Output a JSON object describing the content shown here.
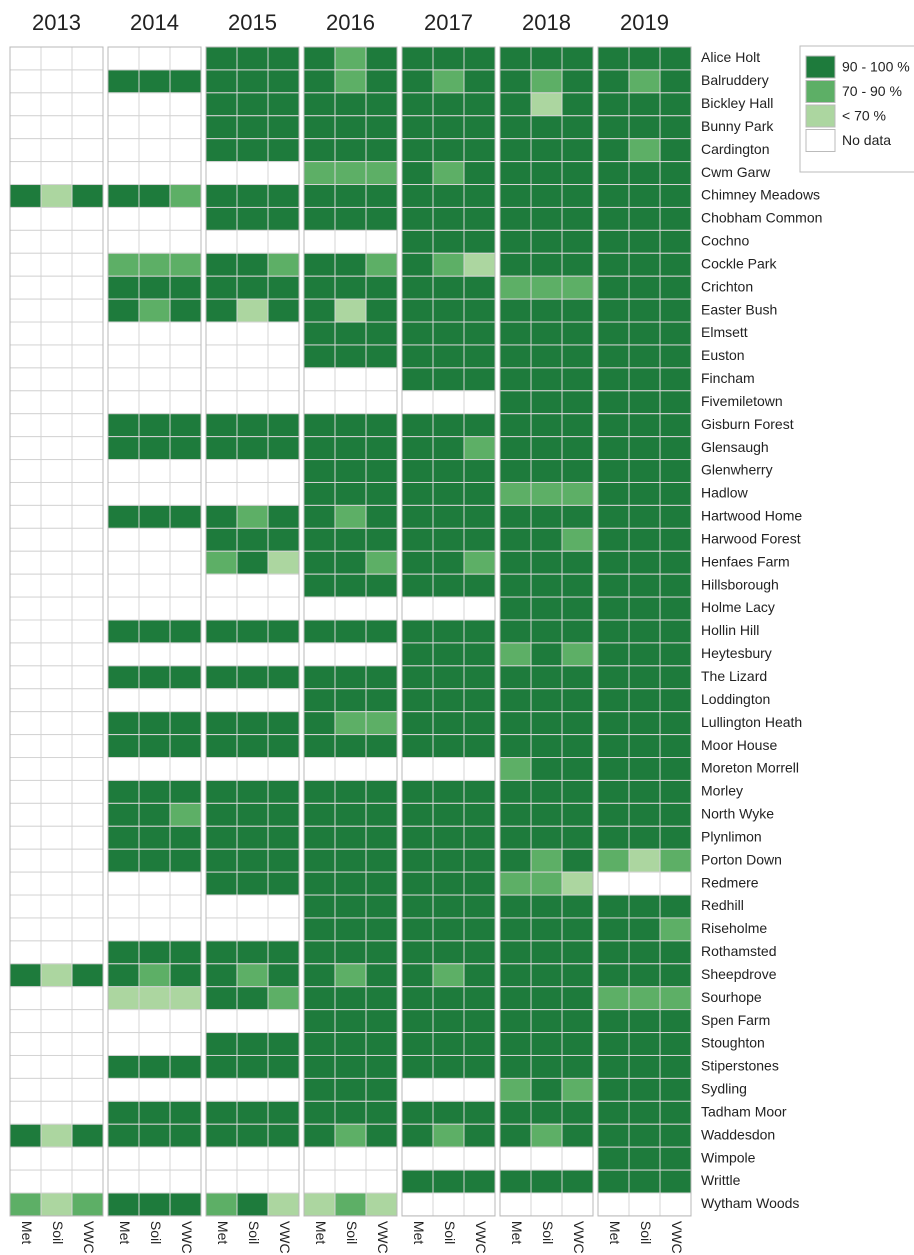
{
  "chart_data": {
    "type": "heatmap",
    "columns": [
      "2013",
      "2014",
      "2015",
      "2016",
      "2017",
      "2018",
      "2019"
    ],
    "variables": [
      "Met",
      "Soil",
      "VWC"
    ],
    "rows": [
      "Alice Holt",
      "Balruddery",
      "Bickley Hall",
      "Bunny Park",
      "Cardington",
      "Cwm Garw",
      "Chimney Meadows",
      "Chobham Common",
      "Cochno",
      "Cockle Park",
      "Crichton",
      "Easter Bush",
      "Elmsett",
      "Euston",
      "Fincham",
      "Fivemiletown",
      "Gisburn Forest",
      "Glensaugh",
      "Glenwherry",
      "Hadlow",
      "Hartwood Home",
      "Harwood Forest",
      "Henfaes Farm",
      "Hillsborough",
      "Holme Lacy",
      "Hollin Hill",
      "Heytesbury",
      "The Lizard",
      "Loddington",
      "Lullington Heath",
      "Moor House",
      "Moreton Morrell",
      "Morley",
      "North Wyke",
      "Plynlimon",
      "Porton Down",
      "Redmere",
      "Redhill",
      "Riseholme",
      "Rothamsted",
      "Sheepdrove",
      "Sourhope",
      "Spen Farm",
      "Stoughton",
      "Stiperstones",
      "Sydling",
      "Tadham Moor",
      "Waddesdon",
      "Wimpole",
      "Writtle",
      "Wytham Woods"
    ],
    "legend": [
      {
        "value": 3,
        "label": "90 - 100 %",
        "color": "#1e7b3c"
      },
      {
        "value": 2,
        "label": "70 - 90 %",
        "color": "#5daf66"
      },
      {
        "value": 1,
        "label": "< 70 %",
        "color": "#acd6a0"
      },
      {
        "value": 0,
        "label": "No data",
        "color": "#ffffff"
      }
    ],
    "values": [
      [
        0,
        0,
        0,
        0,
        0,
        0,
        3,
        3,
        3,
        3,
        2,
        3,
        3,
        3,
        3,
        3,
        3,
        3,
        3,
        3,
        3
      ],
      [
        0,
        0,
        0,
        3,
        3,
        3,
        3,
        3,
        3,
        3,
        2,
        3,
        3,
        2,
        3,
        3,
        2,
        3,
        3,
        2,
        3
      ],
      [
        0,
        0,
        0,
        0,
        0,
        0,
        3,
        3,
        3,
        3,
        3,
        3,
        3,
        3,
        3,
        3,
        1,
        3,
        3,
        3,
        3
      ],
      [
        0,
        0,
        0,
        0,
        0,
        0,
        3,
        3,
        3,
        3,
        3,
        3,
        3,
        3,
        3,
        3,
        3,
        3,
        3,
        3,
        3
      ],
      [
        0,
        0,
        0,
        0,
        0,
        0,
        3,
        3,
        3,
        3,
        3,
        3,
        3,
        3,
        3,
        3,
        3,
        3,
        3,
        2,
        3
      ],
      [
        0,
        0,
        0,
        0,
        0,
        0,
        0,
        0,
        0,
        2,
        2,
        2,
        3,
        2,
        3,
        3,
        3,
        3,
        3,
        3,
        3
      ],
      [
        3,
        1,
        3,
        3,
        3,
        2,
        3,
        3,
        3,
        3,
        3,
        3,
        3,
        3,
        3,
        3,
        3,
        3,
        3,
        3,
        3
      ],
      [
        0,
        0,
        0,
        0,
        0,
        0,
        3,
        3,
        3,
        3,
        3,
        3,
        3,
        3,
        3,
        3,
        3,
        3,
        3,
        3,
        3
      ],
      [
        0,
        0,
        0,
        0,
        0,
        0,
        0,
        0,
        0,
        0,
        0,
        0,
        3,
        3,
        3,
        3,
        3,
        3,
        3,
        3,
        3
      ],
      [
        0,
        0,
        0,
        2,
        2,
        2,
        3,
        3,
        2,
        3,
        3,
        2,
        3,
        2,
        1,
        3,
        3,
        3,
        3,
        3,
        3
      ],
      [
        0,
        0,
        0,
        3,
        3,
        3,
        3,
        3,
        3,
        3,
        3,
        3,
        3,
        3,
        3,
        2,
        2,
        2,
        3,
        3,
        3
      ],
      [
        0,
        0,
        0,
        3,
        2,
        3,
        3,
        1,
        3,
        3,
        1,
        3,
        3,
        3,
        3,
        3,
        3,
        3,
        3,
        3,
        3
      ],
      [
        0,
        0,
        0,
        0,
        0,
        0,
        0,
        0,
        0,
        3,
        3,
        3,
        3,
        3,
        3,
        3,
        3,
        3,
        3,
        3,
        3
      ],
      [
        0,
        0,
        0,
        0,
        0,
        0,
        0,
        0,
        0,
        3,
        3,
        3,
        3,
        3,
        3,
        3,
        3,
        3,
        3,
        3,
        3
      ],
      [
        0,
        0,
        0,
        0,
        0,
        0,
        0,
        0,
        0,
        0,
        0,
        0,
        3,
        3,
        3,
        3,
        3,
        3,
        3,
        3,
        3
      ],
      [
        0,
        0,
        0,
        0,
        0,
        0,
        0,
        0,
        0,
        0,
        0,
        0,
        0,
        0,
        0,
        3,
        3,
        3,
        3,
        3,
        3
      ],
      [
        0,
        0,
        0,
        3,
        3,
        3,
        3,
        3,
        3,
        3,
        3,
        3,
        3,
        3,
        3,
        3,
        3,
        3,
        3,
        3,
        3
      ],
      [
        0,
        0,
        0,
        3,
        3,
        3,
        3,
        3,
        3,
        3,
        3,
        3,
        3,
        3,
        2,
        3,
        3,
        3,
        3,
        3,
        3
      ],
      [
        0,
        0,
        0,
        0,
        0,
        0,
        0,
        0,
        0,
        3,
        3,
        3,
        3,
        3,
        3,
        3,
        3,
        3,
        3,
        3,
        3
      ],
      [
        0,
        0,
        0,
        0,
        0,
        0,
        0,
        0,
        0,
        3,
        3,
        3,
        3,
        3,
        3,
        2,
        2,
        2,
        3,
        3,
        3
      ],
      [
        0,
        0,
        0,
        3,
        3,
        3,
        3,
        2,
        3,
        3,
        2,
        3,
        3,
        3,
        3,
        3,
        3,
        3,
        3,
        3,
        3
      ],
      [
        0,
        0,
        0,
        0,
        0,
        0,
        3,
        3,
        3,
        3,
        3,
        3,
        3,
        3,
        3,
        3,
        3,
        2,
        3,
        3,
        3
      ],
      [
        0,
        0,
        0,
        0,
        0,
        0,
        2,
        3,
        1,
        3,
        3,
        2,
        3,
        3,
        2,
        3,
        3,
        3,
        3,
        3,
        3
      ],
      [
        0,
        0,
        0,
        0,
        0,
        0,
        0,
        0,
        0,
        3,
        3,
        3,
        3,
        3,
        3,
        3,
        3,
        3,
        3,
        3,
        3
      ],
      [
        0,
        0,
        0,
        0,
        0,
        0,
        0,
        0,
        0,
        0,
        0,
        0,
        0,
        0,
        0,
        3,
        3,
        3,
        3,
        3,
        3
      ],
      [
        0,
        0,
        0,
        3,
        3,
        3,
        3,
        3,
        3,
        3,
        3,
        3,
        3,
        3,
        3,
        3,
        3,
        3,
        3,
        3,
        3
      ],
      [
        0,
        0,
        0,
        0,
        0,
        0,
        0,
        0,
        0,
        0,
        0,
        0,
        3,
        3,
        3,
        2,
        3,
        2,
        3,
        3,
        3
      ],
      [
        0,
        0,
        0,
        3,
        3,
        3,
        3,
        3,
        3,
        3,
        3,
        3,
        3,
        3,
        3,
        3,
        3,
        3,
        3,
        3,
        3
      ],
      [
        0,
        0,
        0,
        0,
        0,
        0,
        0,
        0,
        0,
        3,
        3,
        3,
        3,
        3,
        3,
        3,
        3,
        3,
        3,
        3,
        3
      ],
      [
        0,
        0,
        0,
        3,
        3,
        3,
        3,
        3,
        3,
        3,
        2,
        2,
        3,
        3,
        3,
        3,
        3,
        3,
        3,
        3,
        3
      ],
      [
        0,
        0,
        0,
        3,
        3,
        3,
        3,
        3,
        3,
        3,
        3,
        3,
        3,
        3,
        3,
        3,
        3,
        3,
        3,
        3,
        3
      ],
      [
        0,
        0,
        0,
        0,
        0,
        0,
        0,
        0,
        0,
        0,
        0,
        0,
        0,
        0,
        0,
        2,
        3,
        3,
        3,
        3,
        3
      ],
      [
        0,
        0,
        0,
        3,
        3,
        3,
        3,
        3,
        3,
        3,
        3,
        3,
        3,
        3,
        3,
        3,
        3,
        3,
        3,
        3,
        3
      ],
      [
        0,
        0,
        0,
        3,
        3,
        2,
        3,
        3,
        3,
        3,
        3,
        3,
        3,
        3,
        3,
        3,
        3,
        3,
        3,
        3,
        3
      ],
      [
        0,
        0,
        0,
        3,
        3,
        3,
        3,
        3,
        3,
        3,
        3,
        3,
        3,
        3,
        3,
        3,
        3,
        3,
        3,
        3,
        3
      ],
      [
        0,
        0,
        0,
        3,
        3,
        3,
        3,
        3,
        3,
        3,
        3,
        3,
        3,
        3,
        3,
        3,
        2,
        3,
        2,
        1,
        2
      ],
      [
        0,
        0,
        0,
        0,
        0,
        0,
        3,
        3,
        3,
        3,
        3,
        3,
        3,
        3,
        3,
        2,
        2,
        1,
        0,
        0,
        0
      ],
      [
        0,
        0,
        0,
        0,
        0,
        0,
        0,
        0,
        0,
        3,
        3,
        3,
        3,
        3,
        3,
        3,
        3,
        3,
        3,
        3,
        3
      ],
      [
        0,
        0,
        0,
        0,
        0,
        0,
        0,
        0,
        0,
        3,
        3,
        3,
        3,
        3,
        3,
        3,
        3,
        3,
        3,
        3,
        2
      ],
      [
        0,
        0,
        0,
        3,
        3,
        3,
        3,
        3,
        3,
        3,
        3,
        3,
        3,
        3,
        3,
        3,
        3,
        3,
        3,
        3,
        3
      ],
      [
        3,
        1,
        3,
        3,
        2,
        3,
        3,
        2,
        3,
        3,
        2,
        3,
        3,
        2,
        3,
        3,
        3,
        3,
        3,
        3,
        3
      ],
      [
        0,
        0,
        0,
        1,
        1,
        1,
        3,
        3,
        2,
        3,
        3,
        3,
        3,
        3,
        3,
        3,
        3,
        3,
        2,
        2,
        2
      ],
      [
        0,
        0,
        0,
        0,
        0,
        0,
        0,
        0,
        0,
        3,
        3,
        3,
        3,
        3,
        3,
        3,
        3,
        3,
        3,
        3,
        3
      ],
      [
        0,
        0,
        0,
        0,
        0,
        0,
        3,
        3,
        3,
        3,
        3,
        3,
        3,
        3,
        3,
        3,
        3,
        3,
        3,
        3,
        3
      ],
      [
        0,
        0,
        0,
        3,
        3,
        3,
        3,
        3,
        3,
        3,
        3,
        3,
        3,
        3,
        3,
        3,
        3,
        3,
        3,
        3,
        3
      ],
      [
        0,
        0,
        0,
        0,
        0,
        0,
        0,
        0,
        0,
        3,
        3,
        3,
        0,
        0,
        0,
        2,
        3,
        2,
        3,
        3,
        3
      ],
      [
        0,
        0,
        0,
        3,
        3,
        3,
        3,
        3,
        3,
        3,
        3,
        3,
        3,
        3,
        3,
        3,
        3,
        3,
        3,
        3,
        3
      ],
      [
        3,
        1,
        3,
        3,
        3,
        3,
        3,
        3,
        3,
        3,
        2,
        3,
        3,
        2,
        3,
        3,
        2,
        3,
        3,
        3,
        3
      ],
      [
        0,
        0,
        0,
        0,
        0,
        0,
        0,
        0,
        0,
        0,
        0,
        0,
        0,
        0,
        0,
        0,
        0,
        0,
        3,
        3,
        3
      ],
      [
        0,
        0,
        0,
        0,
        0,
        0,
        0,
        0,
        0,
        0,
        0,
        0,
        3,
        3,
        3,
        3,
        3,
        3,
        3,
        3,
        3
      ],
      [
        2,
        1,
        2,
        3,
        3,
        3,
        2,
        3,
        1,
        1,
        2,
        1,
        0,
        0,
        0,
        0,
        0,
        0,
        0,
        0,
        0
      ]
    ]
  }
}
